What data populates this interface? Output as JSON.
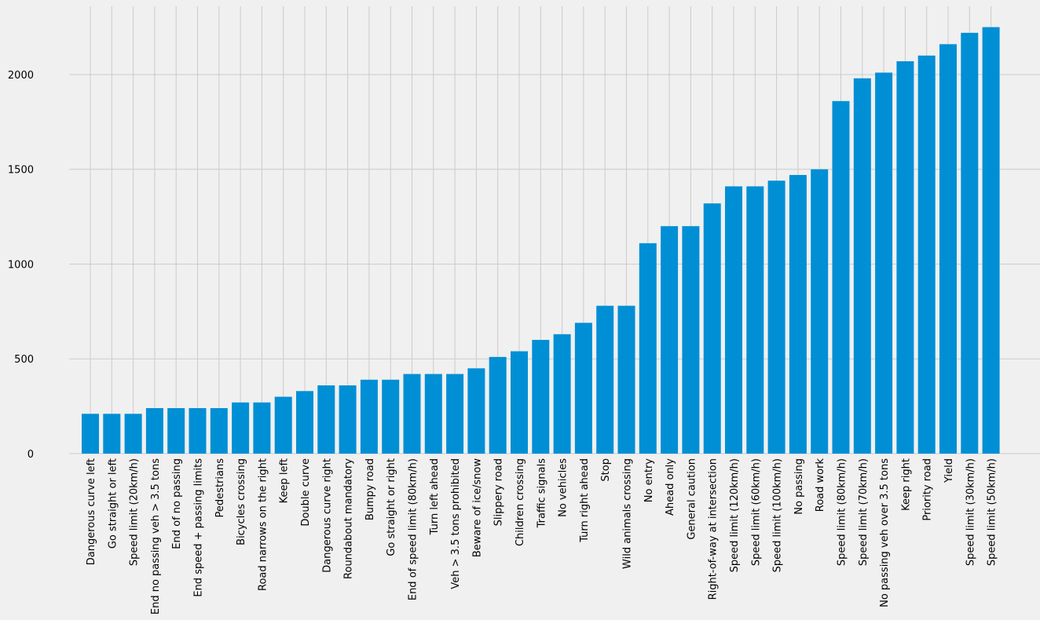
{
  "chart_data": {
    "type": "bar",
    "title": "",
    "xlabel": "",
    "ylabel": "",
    "ylim": [
      0,
      2360
    ],
    "yticks": [
      0,
      500,
      1000,
      1500,
      2000
    ],
    "grid": true,
    "bar_color": "#008fd5",
    "background_color": "#f0f0f0",
    "grid_color": "#cbcbcb",
    "categories": [
      "Dangerous curve left",
      "Go straight or left",
      "Speed limit (20km/h)",
      "End no passing veh > 3.5 tons",
      "End of no passing",
      "End speed + passing limits",
      "Pedestrians",
      "Bicycles crossing",
      "Road narrows on the right",
      "Keep left",
      "Double curve",
      "Dangerous curve right",
      "Roundabout mandatory",
      "Bumpy road",
      "Go straight or right",
      "End of speed limit (80km/h)",
      "Turn left ahead",
      "Veh > 3.5 tons prohibited",
      "Beware of ice/snow",
      "Slippery road",
      "Children crossing",
      "Traffic signals",
      "No vehicles",
      "Turn right ahead",
      "Stop",
      "Wild animals crossing",
      "No entry",
      "Ahead only",
      "General caution",
      "Right-of-way at intersection",
      "Speed limit (120km/h)",
      "Speed limit (60km/h)",
      "Speed limit (100km/h)",
      "No passing",
      "Road work",
      "Speed limit (80km/h)",
      "Speed limit (70km/h)",
      "No passing veh over 3.5 tons",
      "Keep right",
      "Priority road",
      "Yield",
      "Speed limit (30km/h)",
      "Speed limit (50km/h)"
    ],
    "values": [
      210,
      210,
      210,
      240,
      240,
      240,
      240,
      270,
      270,
      300,
      330,
      360,
      360,
      390,
      390,
      420,
      420,
      420,
      450,
      510,
      540,
      600,
      630,
      690,
      780,
      780,
      1110,
      1200,
      1200,
      1320,
      1410,
      1410,
      1440,
      1470,
      1500,
      1860,
      1980,
      2010,
      2070,
      2100,
      2160,
      2220,
      2250
    ]
  }
}
